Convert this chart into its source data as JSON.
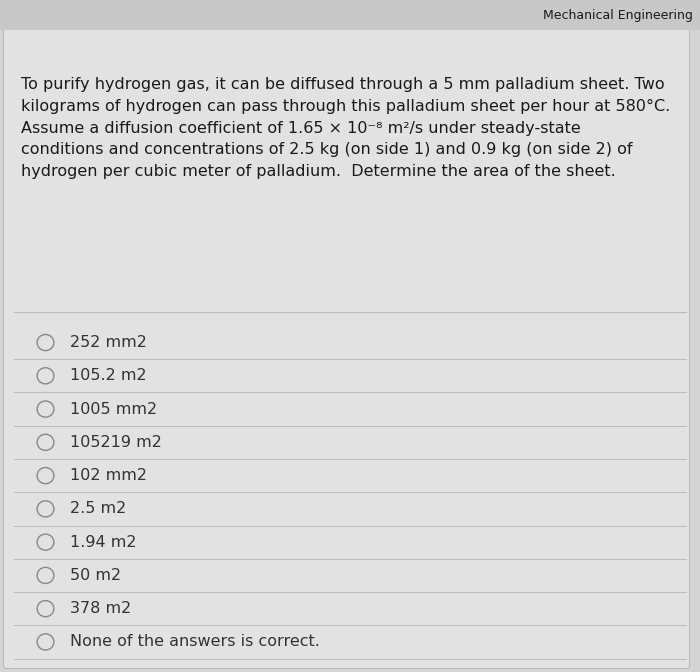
{
  "bg_color": "#d4d4d4",
  "card_bg": "#e2e2e2",
  "header_bg": "#c8c8c8",
  "header_text": "Mechanical Engineering",
  "question_text": "To purify hydrogen gas, it can be diffused through a 5 mm palladium sheet. Two\nkilograms of hydrogen can pass through this palladium sheet per hour at 580°C.\nAssume a diffusion coefficient of 1.65 × 10⁻⁸ m²/s under steady-state\nconditions and concentrations of 2.5 kg (on side 1) and 0.9 kg (on side 2) of\nhydrogen per cubic meter of palladium.  Determine the area of the sheet.",
  "options": [
    "252 mm2",
    "105.2 m2",
    "1005 mm2",
    "105219 m2",
    "102 mm2",
    "2.5 m2",
    "1.94 m2",
    "50 m2",
    "378 m2",
    "None of the answers is correct."
  ],
  "text_color": "#1a1a1a",
  "option_text_color": "#333333",
  "line_color": "#bbbbbb",
  "circle_color": "#888888",
  "font_size_question": 11.5,
  "font_size_option": 11.5
}
